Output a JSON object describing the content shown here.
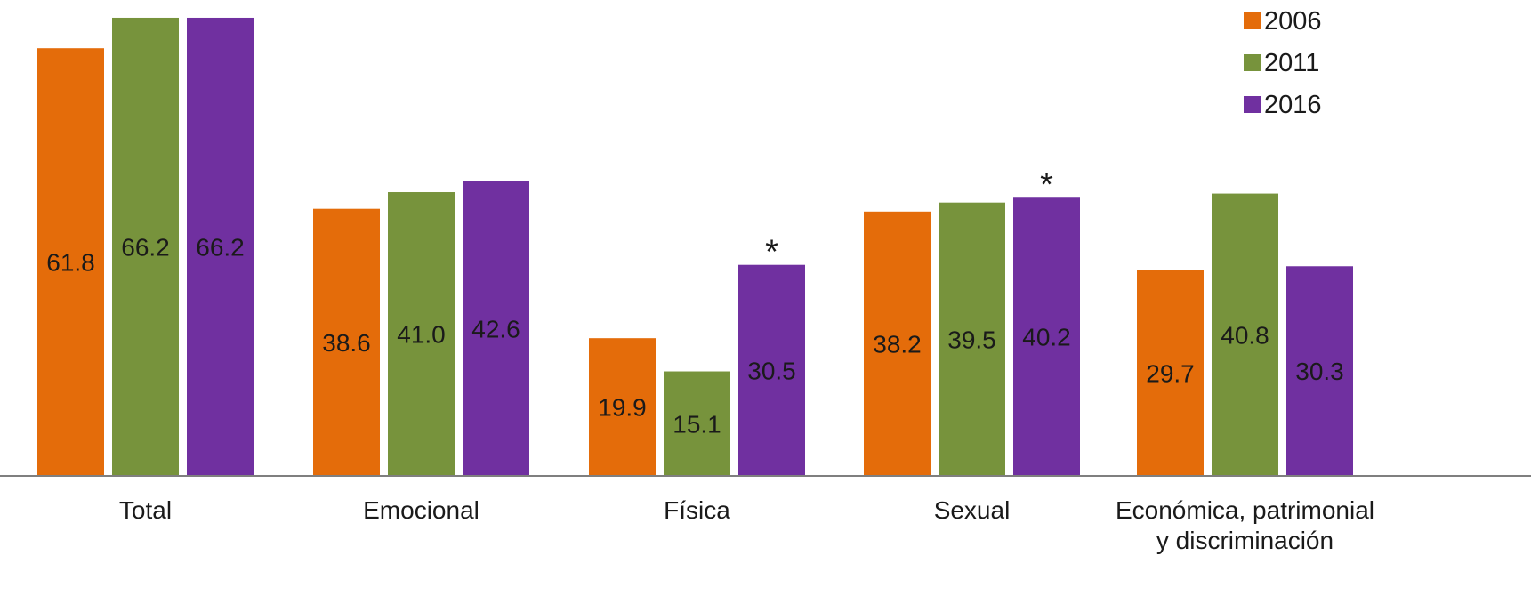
{
  "chart_data": {
    "type": "bar",
    "categories": [
      [
        "Total"
      ],
      [
        "Emocional"
      ],
      [
        "Física"
      ],
      [
        "Sexual"
      ],
      [
        "Económica, patrimonial",
        "y discriminación"
      ]
    ],
    "series": [
      {
        "name": "2006",
        "color": "#E46C0A",
        "values": [
          61.8,
          38.6,
          19.9,
          38.2,
          29.7
        ]
      },
      {
        "name": "2011",
        "color": "#77933C",
        "values": [
          66.2,
          41.0,
          15.1,
          39.5,
          40.8
        ]
      },
      {
        "name": "2016",
        "color": "#7030A0",
        "values": [
          66.2,
          42.6,
          30.5,
          40.2,
          30.3
        ]
      }
    ],
    "value_labels": [
      [
        "61.8",
        "38.6",
        "19.9",
        "38.2",
        "29.7"
      ],
      [
        "66.2",
        "41.0",
        "15.1",
        "39.5",
        "40.8"
      ],
      [
        "66.2",
        "42.6",
        "30.5",
        "40.2",
        "30.3"
      ]
    ],
    "annotations": [
      {
        "text": "*",
        "series": "2016",
        "category_index": 2
      },
      {
        "text": "*",
        "series": "2016",
        "category_index": 3
      }
    ],
    "legend": {
      "position": "top-right",
      "entries": [
        "2006",
        "2011",
        "2016"
      ]
    },
    "grid": false,
    "y_axis_visible": false,
    "ylim": [
      0,
      65
    ]
  }
}
